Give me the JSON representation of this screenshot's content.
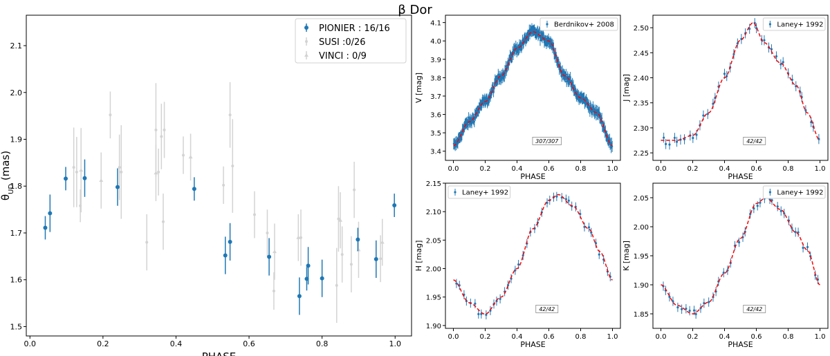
{
  "figure": {
    "suptitle": "β Dor"
  },
  "colors": {
    "blue": "#1f77b4",
    "grey": "#d3d3d3",
    "fit": "#ff0000"
  },
  "chart_data": [
    {
      "id": "diameter",
      "type": "scatter",
      "xlabel": "PHASE",
      "ylabel_main": "θ",
      "ylabel_sub": "UD",
      "ylabel_tail": " (mas)",
      "xlim": [
        -0.01,
        1.045
      ],
      "ylim": [
        1.48,
        2.165
      ],
      "xticks": [
        "0.0",
        "0.2",
        "0.4",
        "0.6",
        "0.8",
        "1.0"
      ],
      "yticks": [
        "1.5",
        "1.6",
        "1.7",
        "1.8",
        "1.9",
        "2.0",
        "2.1"
      ],
      "legend": {
        "position": "top-right"
      },
      "series": [
        {
          "name": "PIONIER : 16/16",
          "color": "blue",
          "marker": "circle",
          "points": [
            [
              0.042,
              1.711,
              0.025
            ],
            [
              0.055,
              1.742,
              0.04
            ],
            [
              0.098,
              1.816,
              0.025
            ],
            [
              0.15,
              1.817,
              0.04
            ],
            [
              0.24,
              1.798,
              0.04
            ],
            [
              0.45,
              1.794,
              0.025
            ],
            [
              0.535,
              1.652,
              0.04
            ],
            [
              0.548,
              1.681,
              0.04
            ],
            [
              0.655,
              1.649,
              0.04
            ],
            [
              0.738,
              1.565,
              0.04
            ],
            [
              0.758,
              1.602,
              0.025
            ],
            [
              0.762,
              1.63,
              0.04
            ],
            [
              0.8,
              1.603,
              0.04
            ],
            [
              0.898,
              1.686,
              0.025
            ],
            [
              0.948,
              1.644,
              0.04
            ],
            [
              0.998,
              1.759,
              0.025
            ]
          ]
        },
        {
          "name": "SUSI :0/26",
          "color": "grey",
          "marker": "point",
          "points": [
            [
              0.12,
              1.84,
              0.085
            ],
            [
              0.128,
              1.83,
              0.075
            ],
            [
              0.138,
              1.758,
              0.035
            ],
            [
              0.22,
              1.952,
              0.05
            ],
            [
              0.245,
              1.84,
              0.07
            ],
            [
              0.25,
              1.83,
              0.1
            ],
            [
              0.32,
              1.68,
              0.06
            ],
            [
              0.345,
              1.92,
              0.1
            ],
            [
              0.352,
              1.83,
              0.05
            ],
            [
              0.36,
              1.906,
              0.07
            ],
            [
              0.365,
              1.724,
              0.06
            ],
            [
              0.368,
              1.92,
              0.06
            ],
            [
              0.42,
              1.866,
              0.04
            ],
            [
              0.53,
              1.802,
              0.04
            ],
            [
              0.548,
              1.952,
              0.07
            ],
            [
              0.555,
              1.843,
              0.1
            ],
            [
              0.615,
              1.739,
              0.05
            ],
            [
              0.65,
              1.7,
              0.05
            ],
            [
              0.668,
              1.576,
              0.04
            ],
            [
              0.742,
              1.69,
              0.06
            ],
            [
              0.84,
              1.588,
              0.08
            ],
            [
              0.845,
              1.73,
              0.07
            ],
            [
              0.855,
              1.654,
              0.06
            ],
            [
              0.88,
              1.633,
              0.06
            ],
            [
              0.888,
              1.792,
              0.06
            ],
            [
              0.96,
              1.645,
              0.05
            ]
          ]
        },
        {
          "name": "VINCI : 0/9",
          "color": "grey",
          "marker": "triangle",
          "points": [
            [
              0.14,
              1.834,
              0.09
            ],
            [
              0.195,
              1.812,
              0.06
            ],
            [
              0.345,
              1.828,
              0.06
            ],
            [
              0.44,
              1.862,
              0.05
            ],
            [
              0.67,
              1.66,
              0.06
            ],
            [
              0.735,
              1.69,
              0.05
            ],
            [
              0.85,
              1.727,
              0.06
            ],
            [
              0.9,
              1.664,
              0.06
            ],
            [
              0.965,
              1.68,
              0.05
            ]
          ]
        }
      ]
    },
    {
      "id": "lc-V",
      "type": "scatter",
      "xlabel": "PHASE",
      "ylabel": "V [mag]",
      "xlim": [
        -0.05,
        1.05
      ],
      "ylim": [
        3.35,
        4.14
      ],
      "invert_y": true,
      "xticks": [
        "0.0",
        "0.2",
        "0.4",
        "0.6",
        "0.8",
        "1.0"
      ],
      "yticks": [
        "3.4",
        "3.5",
        "3.6",
        "3.7",
        "3.8",
        "3.9",
        "4.0",
        "4.1"
      ],
      "legend": {
        "position": "top-right",
        "label": "Berdnikov+ 2008"
      },
      "annotation": "307/307",
      "n_points": 307,
      "err": 0.03,
      "scatter": 0.02,
      "fit_knots": [
        [
          0.0,
          3.43
        ],
        [
          0.1,
          3.56
        ],
        [
          0.2,
          3.67
        ],
        [
          0.3,
          3.81
        ],
        [
          0.4,
          3.96
        ],
        [
          0.5,
          4.05
        ],
        [
          0.6,
          4.0
        ],
        [
          0.7,
          3.81
        ],
        [
          0.8,
          3.69
        ],
        [
          0.9,
          3.61
        ],
        [
          1.0,
          3.43
        ]
      ]
    },
    {
      "id": "lc-J",
      "type": "scatter",
      "xlabel": "PHASE",
      "ylabel": "J [mag]",
      "xlim": [
        -0.05,
        1.05
      ],
      "ylim": [
        2.235,
        2.525
      ],
      "invert_y": true,
      "xticks": [
        "0.0",
        "0.2",
        "0.4",
        "0.6",
        "0.8",
        "1.0"
      ],
      "yticks": [
        "2.25",
        "2.30",
        "2.35",
        "2.40",
        "2.45",
        "2.50"
      ],
      "legend": {
        "position": "top-right",
        "label": "Laney+ 1992"
      },
      "annotation": "42/42",
      "n_points": 42,
      "err": 0.01,
      "scatter": 0.008,
      "fit_knots": [
        [
          0.0,
          2.275
        ],
        [
          0.1,
          2.275
        ],
        [
          0.2,
          2.285
        ],
        [
          0.3,
          2.33
        ],
        [
          0.4,
          2.4
        ],
        [
          0.5,
          2.475
        ],
        [
          0.58,
          2.51
        ],
        [
          0.65,
          2.47
        ],
        [
          0.75,
          2.43
        ],
        [
          0.85,
          2.385
        ],
        [
          0.92,
          2.33
        ],
        [
          1.0,
          2.275
        ]
      ]
    },
    {
      "id": "lc-H",
      "type": "scatter",
      "xlabel": "PHASE",
      "ylabel": "H [mag]",
      "xlim": [
        -0.05,
        1.05
      ],
      "ylim": [
        1.895,
        2.15
      ],
      "invert_y": true,
      "xticks": [
        "0.0",
        "0.2",
        "0.4",
        "0.6",
        "0.8",
        "1.0"
      ],
      "yticks": [
        "1.90",
        "1.95",
        "2.00",
        "2.05",
        "2.10",
        "2.15"
      ],
      "legend": {
        "position": "top-left",
        "label": "Laney+ 1992"
      },
      "annotation": "42/42",
      "n_points": 42,
      "err": 0.008,
      "scatter": 0.006,
      "fit_knots": [
        [
          0.0,
          1.98
        ],
        [
          0.1,
          1.94
        ],
        [
          0.2,
          1.92
        ],
        [
          0.3,
          1.95
        ],
        [
          0.4,
          2.0
        ],
        [
          0.5,
          2.07
        ],
        [
          0.6,
          2.12
        ],
        [
          0.66,
          2.13
        ],
        [
          0.75,
          2.11
        ],
        [
          0.85,
          2.07
        ],
        [
          0.92,
          2.03
        ],
        [
          1.0,
          1.98
        ]
      ]
    },
    {
      "id": "lc-K",
      "type": "scatter",
      "xlabel": "PHASE",
      "ylabel": "K [mag]",
      "xlim": [
        -0.05,
        1.05
      ],
      "ylim": [
        1.825,
        2.075
      ],
      "invert_y": true,
      "xticks": [
        "0.0",
        "0.2",
        "0.4",
        "0.6",
        "0.8",
        "1.0"
      ],
      "yticks": [
        "1.85",
        "1.90",
        "1.95",
        "2.00",
        "2.05"
      ],
      "legend": {
        "position": "top-right",
        "label": "Laney+ 1992"
      },
      "annotation": "42/42",
      "n_points": 42,
      "err": 0.008,
      "scatter": 0.006,
      "fit_knots": [
        [
          0.0,
          1.9
        ],
        [
          0.1,
          1.865
        ],
        [
          0.2,
          1.85
        ],
        [
          0.3,
          1.87
        ],
        [
          0.4,
          1.92
        ],
        [
          0.5,
          1.98
        ],
        [
          0.6,
          2.04
        ],
        [
          0.66,
          2.05
        ],
        [
          0.75,
          2.03
        ],
        [
          0.85,
          1.99
        ],
        [
          0.92,
          1.96
        ],
        [
          1.0,
          1.9
        ]
      ]
    }
  ]
}
